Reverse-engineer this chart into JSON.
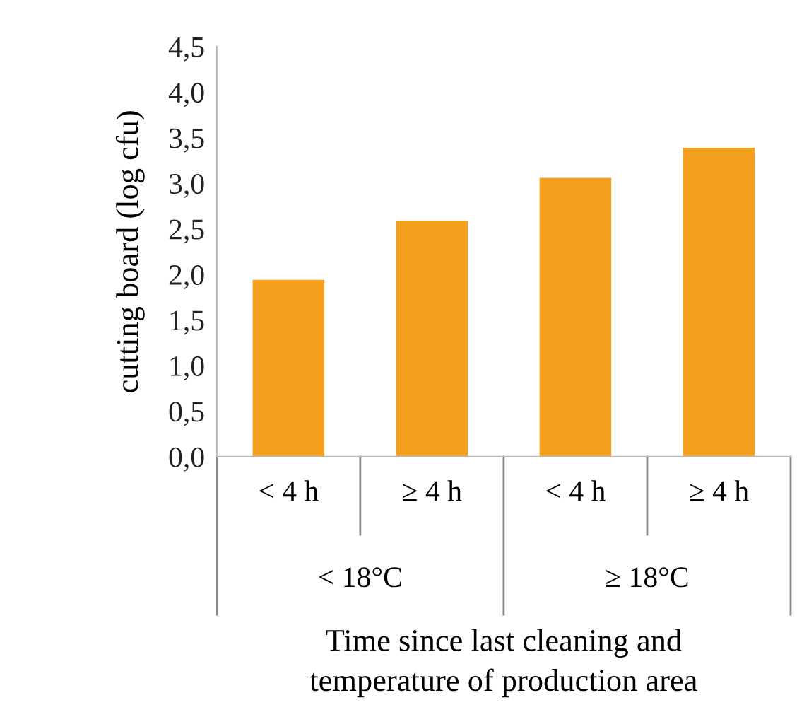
{
  "chart_data": {
    "type": "bar",
    "ylabel": "cutting board (log cfu)",
    "xlabel": "Time since last cleaning and\ntemperature of production area",
    "categories": [
      "< 4 h",
      "≥ 4 h",
      "< 4 h",
      "≥ 4 h"
    ],
    "annotations": [
      "< 18°C",
      "≥ 18°C"
    ],
    "values": [
      1.94,
      2.59,
      3.06,
      3.39
    ],
    "color": "#f59f1f",
    "ylim": [
      0,
      4.5
    ],
    "yticks": [
      {
        "value": 0,
        "label": "0,0"
      },
      {
        "value": 0.5,
        "label": "0,5"
      },
      {
        "value": 1,
        "label": "1,0"
      },
      {
        "value": 1.5,
        "label": "1,5"
      },
      {
        "value": 2,
        "label": "2,0"
      },
      {
        "value": 2.5,
        "label": "2,5"
      },
      {
        "value": 3,
        "label": "3,0"
      },
      {
        "value": 3.5,
        "label": "3,5"
      },
      {
        "value": 4,
        "label": "4,0"
      },
      {
        "value": 4.5,
        "label": "4,5"
      }
    ],
    "grid": false,
    "legend": false
  }
}
